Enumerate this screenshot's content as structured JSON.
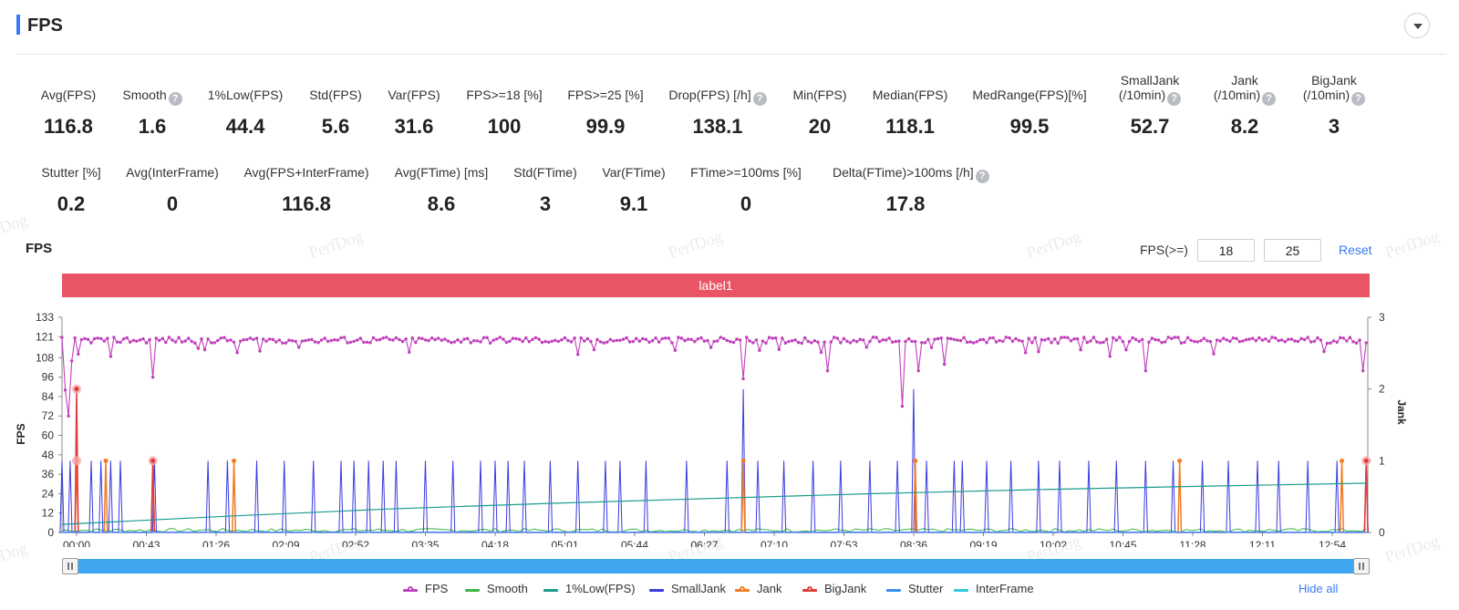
{
  "header": {
    "title": "FPS"
  },
  "metrics_row1": [
    {
      "label": "Avg(FPS)",
      "value": "116.8",
      "help": false
    },
    {
      "label": "Smooth",
      "value": "1.6",
      "help": true
    },
    {
      "label": "1%Low(FPS)",
      "value": "44.4",
      "help": false
    },
    {
      "label": "Std(FPS)",
      "value": "5.6",
      "help": false
    },
    {
      "label": "Var(FPS)",
      "value": "31.6",
      "help": false
    },
    {
      "label": "FPS>=18 [%]",
      "value": "100",
      "help": false
    },
    {
      "label": "FPS>=25 [%]",
      "value": "99.9",
      "help": false
    },
    {
      "label": "Drop(FPS) [/h]",
      "value": "138.1",
      "help": true
    },
    {
      "label": "Min(FPS)",
      "value": "20",
      "help": false
    },
    {
      "label": "Median(FPS)",
      "value": "118.1",
      "help": false
    },
    {
      "label": "MedRange(FPS)[%]",
      "value": "99.5",
      "help": false
    },
    {
      "label": "SmallJank\n(/10min)",
      "value": "52.7",
      "help": true
    },
    {
      "label": "Jank\n(/10min)",
      "value": "8.2",
      "help": true
    },
    {
      "label": "BigJank\n(/10min)",
      "value": "3",
      "help": true
    }
  ],
  "metrics_row2": [
    {
      "label": "Stutter [%]",
      "value": "0.2",
      "help": false
    },
    {
      "label": "Avg(InterFrame)",
      "value": "0",
      "help": false
    },
    {
      "label": "Avg(FPS+InterFrame)",
      "value": "116.8",
      "help": false
    },
    {
      "label": "Avg(FTime) [ms]",
      "value": "8.6",
      "help": false
    },
    {
      "label": "Std(FTime)",
      "value": "3",
      "help": false
    },
    {
      "label": "Var(FTime)",
      "value": "9.1",
      "help": false
    },
    {
      "label": "FTime>=100ms [%]",
      "value": "0",
      "help": false
    },
    {
      "label": "Delta(FTime)>100ms [/h]",
      "value": "17.8",
      "help": true
    }
  ],
  "watermark_text": "PerfDog",
  "chart_section": {
    "title": "FPS",
    "filter_label": "FPS(>=)",
    "filter_low": "18",
    "filter_high": "25",
    "reset_label": "Reset",
    "label_band": "label1",
    "hide_all_label": "Hide all"
  },
  "colors": {
    "FPS": "#c13fbc",
    "Smooth": "#3fb549",
    "1%Low(FPS)": "#1a9a8e",
    "SmallJank": "#3a3ae0",
    "Jank": "#f07c24",
    "BigJank": "#e03a3a",
    "Stutter": "#3a8ef0",
    "InterFrame": "#2ec8d8",
    "label_band": "#ea5565",
    "accent": "#3b78f2"
  },
  "chart_data": {
    "type": "line",
    "ylabel": "FPS",
    "y2label": "Jank",
    "ylim": [
      0,
      133
    ],
    "y_ticks": [
      0,
      12,
      24,
      36,
      48,
      60,
      72,
      84,
      96,
      108,
      121,
      133
    ],
    "y2lim": [
      0,
      3
    ],
    "y2_ticks": [
      0,
      1,
      2,
      3
    ],
    "x_ticks": [
      "00:00",
      "00:43",
      "01:26",
      "02:09",
      "02:52",
      "03:35",
      "04:18",
      "05:01",
      "05:44",
      "06:27",
      "07:10",
      "07:53",
      "08:36",
      "09:19",
      "10:02",
      "10:45",
      "11:28",
      "12:11",
      "12:54"
    ],
    "x_range_seconds": [
      0,
      805
    ],
    "legend": [
      "FPS",
      "Smooth",
      "1%Low(FPS)",
      "SmallJank",
      "Jank",
      "BigJank",
      "Stutter",
      "InterFrame"
    ],
    "series": [
      {
        "name": "FPS",
        "baseline": 119,
        "dips": [
          [
            2,
            88
          ],
          [
            4,
            72
          ],
          [
            6,
            106
          ],
          [
            56,
            96
          ],
          [
            420,
            95
          ],
          [
            472,
            100
          ],
          [
            518,
            78
          ],
          [
            528,
            100
          ],
          [
            545,
            104
          ],
          [
            668,
            100
          ],
          [
            803,
            100
          ]
        ]
      },
      {
        "name": "1%Low(FPS)",
        "x": [
          0,
          100,
          200,
          300,
          400,
          500,
          600,
          700,
          805
        ],
        "values": [
          5,
          10,
          14.5,
          18,
          21,
          24,
          26.5,
          28.5,
          30.5
        ]
      },
      {
        "name": "SmallJank",
        "x": [
          0,
          5,
          18,
          24,
          30,
          36,
          57,
          90,
          102,
          120,
          137,
          155,
          172,
          180,
          189,
          198,
          206,
          224,
          241,
          258,
          267,
          275,
          285,
          301,
          318,
          335,
          344,
          360,
          385,
          410,
          420,
          429,
          445,
          463,
          480,
          498,
          515,
          525,
          533,
          550,
          555,
          570,
          585,
          602,
          615,
          633,
          650,
          668,
          685,
          703,
          719,
          737,
          750,
          768,
          786,
          804
        ],
        "values": [
          1,
          1,
          1,
          1,
          1,
          1,
          1,
          1,
          1,
          1,
          1,
          1,
          1,
          1,
          1,
          1,
          1,
          1,
          1,
          1,
          1,
          1,
          1,
          1,
          1,
          1,
          1,
          1,
          1,
          1,
          2,
          1,
          1,
          1,
          1,
          1,
          1,
          2,
          1,
          1,
          1,
          1,
          1,
          1,
          1,
          1,
          1,
          1,
          1,
          1,
          1,
          1,
          1,
          1,
          1,
          1
        ]
      },
      {
        "name": "Jank",
        "x": [
          9,
          27,
          56,
          106,
          420,
          526,
          689,
          789
        ],
        "values": [
          1,
          1,
          1,
          1,
          1,
          1,
          1,
          1
        ]
      },
      {
        "name": "BigJank",
        "x": [
          9,
          56,
          804
        ],
        "values": [
          2,
          1,
          1
        ]
      },
      {
        "name": "Smooth",
        "baseline": 0.3
      },
      {
        "name": "Stutter",
        "baseline": 0
      },
      {
        "name": "InterFrame",
        "baseline": 0
      }
    ]
  }
}
